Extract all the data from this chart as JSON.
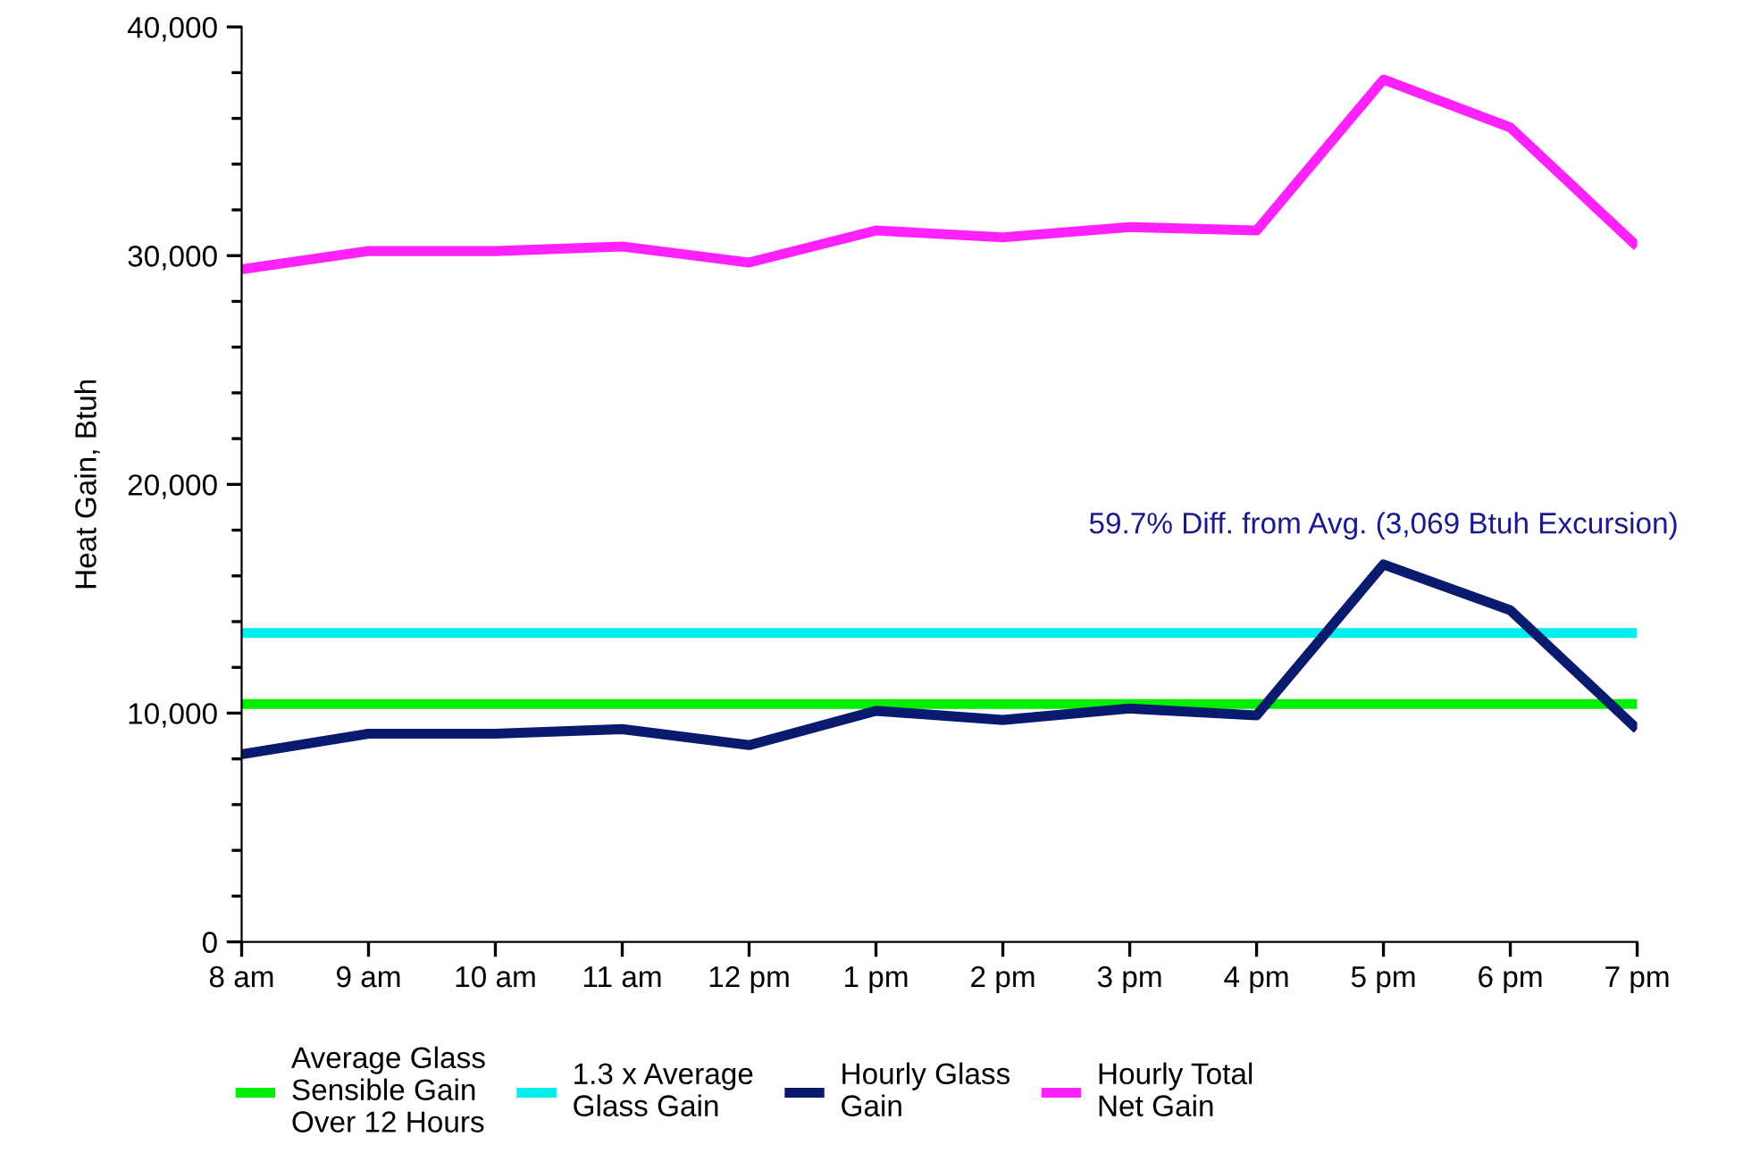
{
  "chart_data": {
    "type": "line",
    "ylabel": "Heat Gain, Btuh",
    "categories": [
      "8 am",
      "9 am",
      "10 am",
      "11 am",
      "12 pm",
      "1 pm",
      "2 pm",
      "3 pm",
      "4 pm",
      "5 pm",
      "6 pm",
      "7 pm"
    ],
    "series": [
      {
        "name": "Average Glass Sensible Gain Over 12 Hours",
        "color": "#00ee00",
        "values": [
          10400,
          10400,
          10400,
          10400,
          10400,
          10400,
          10400,
          10400,
          10400,
          10400,
          10400,
          10400
        ]
      },
      {
        "name": "1.3 x Average Glass Gain",
        "color": "#00eeee",
        "values": [
          13500,
          13500,
          13500,
          13500,
          13500,
          13500,
          13500,
          13500,
          13500,
          13500,
          13500,
          13500
        ]
      },
      {
        "name": "Hourly Glass Gain",
        "color": "#0a1a6e",
        "values": [
          8200,
          9100,
          9100,
          9300,
          8600,
          10100,
          9700,
          10200,
          9900,
          16500,
          14500,
          9300
        ]
      },
      {
        "name": "Hourly Total Net Gain",
        "color": "#ff22ff",
        "values": [
          29400,
          30200,
          30200,
          30400,
          29700,
          31100,
          30800,
          31250,
          31100,
          37700,
          35600,
          30400
        ]
      }
    ],
    "annotations": [
      {
        "text": "59.7% Diff. from Avg. (3,069 Btuh Excursion)",
        "x": "5 pm",
        "y": 16500
      }
    ],
    "ylim": [
      0,
      40000
    ],
    "yticks": [
      0,
      {
        "value": 2000,
        "label": null
      },
      {
        "value": 4000,
        "label": null
      },
      {
        "value": 6000,
        "label": null
      },
      {
        "value": 8000,
        "label": null
      },
      {
        "value": 10000,
        "label": "10,000"
      },
      {
        "value": 12000,
        "label": null
      },
      {
        "value": 14000,
        "label": null
      },
      {
        "value": 16000,
        "label": null
      },
      {
        "value": 18000,
        "label": null
      },
      {
        "value": 20000,
        "label": "20,000"
      },
      {
        "value": 22000,
        "label": null
      },
      {
        "value": 24000,
        "label": null
      },
      {
        "value": 26000,
        "label": null
      },
      {
        "value": 28000,
        "label": null
      },
      {
        "value": 30000,
        "label": "30,000"
      },
      {
        "value": 32000,
        "label": null
      },
      {
        "value": 34000,
        "label": null
      },
      {
        "value": 36000,
        "label": null
      },
      {
        "value": 38000,
        "label": null
      },
      {
        "value": 40000,
        "label": "40,000"
      }
    ],
    "grid": false,
    "legend": "bottom",
    "marker": "none",
    "line_style": "solid"
  }
}
